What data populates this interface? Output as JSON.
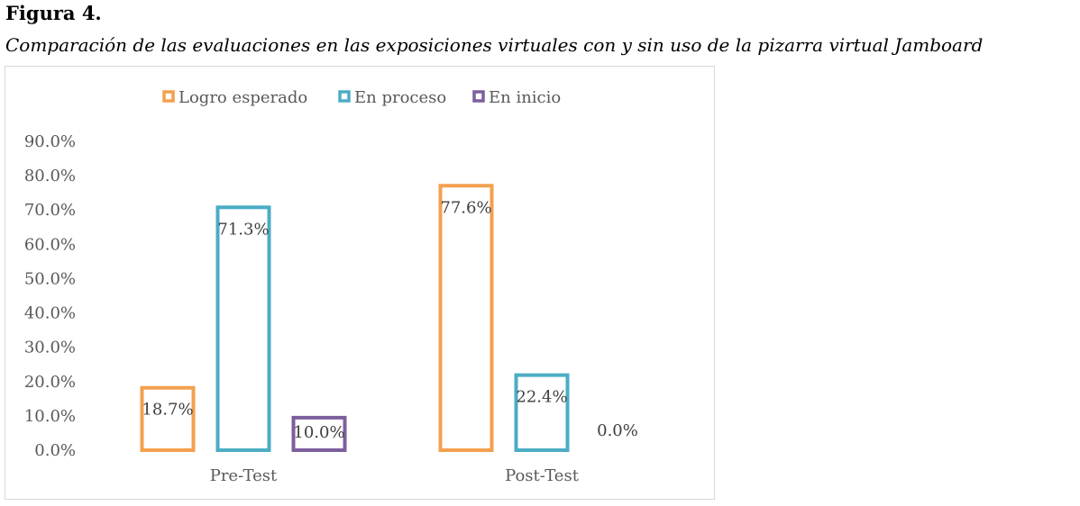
{
  "figure": {
    "label": "Figura 4.",
    "caption": "Comparación de las evaluaciones en las exposiciones virtuales con y sin uso de la pizarra virtual Jamboard"
  },
  "chart_data": {
    "type": "bar",
    "title": "",
    "xlabel": "",
    "ylabel": "",
    "categories": [
      "Pre-Test",
      "Post-Test"
    ],
    "series": [
      {
        "name": "Logro esperado",
        "values": [
          18.7,
          77.6
        ],
        "labels": [
          "18.7%",
          "77.6%"
        ],
        "color": "#f4a04e"
      },
      {
        "name": "En proceso",
        "values": [
          71.3,
          22.4
        ],
        "labels": [
          "71.3%",
          "22.4%"
        ],
        "color": "#4badc4"
      },
      {
        "name": "En inicio",
        "values": [
          10.0,
          0.0
        ],
        "labels": [
          "10.0%",
          "0.0%"
        ],
        "color": "#7d5f9e"
      }
    ],
    "ylim": [
      0,
      90
    ],
    "yticks": [
      "0.0%",
      "10.0%",
      "20.0%",
      "30.0%",
      "40.0%",
      "50.0%",
      "60.0%",
      "70.0%",
      "80.0%",
      "90.0%"
    ],
    "bar_style": "outlined",
    "grid": false,
    "legend_position": "top"
  }
}
